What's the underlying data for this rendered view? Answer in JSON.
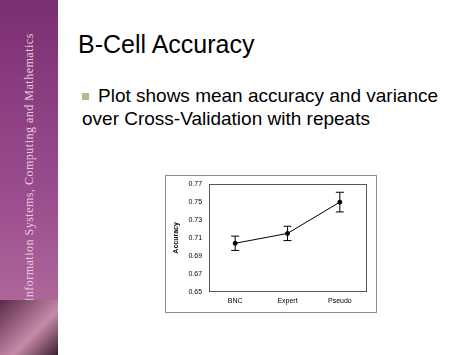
{
  "slide": {
    "title": "B-Cell Accuracy",
    "bullet": "Plot shows mean accuracy and variance over Cross-Validation with repeats",
    "sidebar": "Information Systems, Computing and Mathematics"
  },
  "chart_data": {
    "type": "line",
    "y_label": "Accuracy",
    "categories": [
      "BNC",
      "Expert",
      "Pseudo"
    ],
    "values": [
      0.704,
      0.715,
      0.75
    ],
    "errors": [
      0.008,
      0.008,
      0.011
    ],
    "color": "#000000",
    "marker": "circle",
    "ylim": [
      0.65,
      0.77
    ],
    "yticks": [
      0.65,
      0.67,
      0.69,
      0.71,
      0.73,
      0.75,
      0.77
    ],
    "grid": false
  }
}
